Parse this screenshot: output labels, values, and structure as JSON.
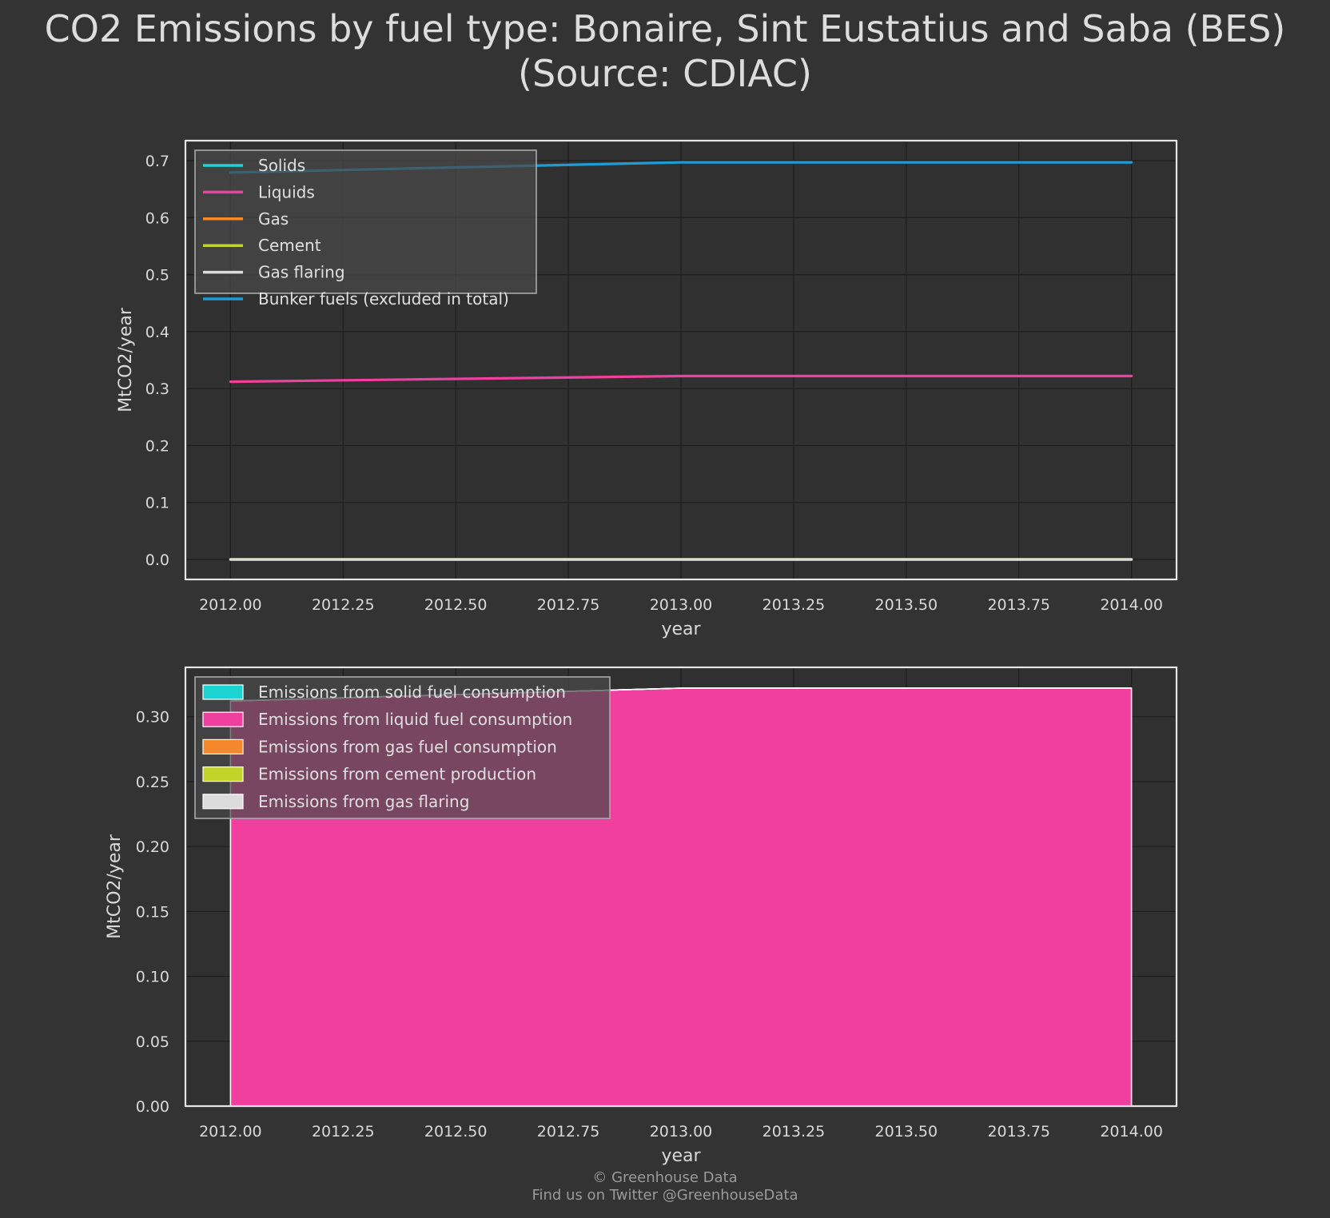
{
  "title": {
    "line1": "CO2 Emissions by fuel type: Bonaire, Sint Eustatius and Saba (BES)",
    "line2": "(Source: CDIAC)"
  },
  "footer": {
    "line1": "© Greenhouse Data",
    "line2": "Find us on Twitter @GreenhouseData"
  },
  "colors": {
    "background": "#333333",
    "solids": "#1bd3d3",
    "liquids": "#f03f9e",
    "gas": "#f5882a",
    "cement": "#c2d42a",
    "gas_flaring": "#dcdcdc",
    "bunker": "#1e9bd7"
  },
  "chart_data": [
    {
      "type": "line",
      "x": [
        2012,
        2013,
        2014
      ],
      "xlabel": "year",
      "ylabel": "MtCO2/year",
      "xlim": [
        2011.9,
        2014.1
      ],
      "ylim": [
        -0.035,
        0.735
      ],
      "xticks": [
        2012.0,
        2012.25,
        2012.5,
        2012.75,
        2013.0,
        2013.25,
        2013.5,
        2013.75,
        2014.0
      ],
      "xtick_labels": [
        "2012.00",
        "2012.25",
        "2012.50",
        "2012.75",
        "2013.00",
        "2013.25",
        "2013.50",
        "2013.75",
        "2014.00"
      ],
      "yticks": [
        0.0,
        0.1,
        0.2,
        0.3,
        0.4,
        0.5,
        0.6,
        0.7
      ],
      "ytick_labels": [
        "0.0",
        "0.1",
        "0.2",
        "0.3",
        "0.4",
        "0.5",
        "0.6",
        "0.7"
      ],
      "grid": true,
      "legend_position": "top-left",
      "series": [
        {
          "name": "Solids",
          "color": "#1bd3d3",
          "values": [
            0.0,
            0.0,
            0.0
          ]
        },
        {
          "name": "Liquids",
          "color": "#f03f9e",
          "values": [
            0.312,
            0.322,
            0.322
          ]
        },
        {
          "name": "Gas",
          "color": "#f5882a",
          "values": [
            0.0,
            0.0,
            0.0
          ]
        },
        {
          "name": "Cement",
          "color": "#c2d42a",
          "values": [
            0.0,
            0.0,
            0.0
          ]
        },
        {
          "name": "Gas flaring",
          "color": "#dcdcdc",
          "values": [
            0.0,
            0.0,
            0.0
          ]
        },
        {
          "name": "Bunker fuels (excluded in total)",
          "color": "#1e9bd7",
          "values": [
            0.679,
            0.697,
            0.697
          ]
        }
      ]
    },
    {
      "type": "area",
      "stacked": true,
      "x": [
        2012,
        2013,
        2014
      ],
      "xlabel": "year",
      "ylabel": "MtCO2/year",
      "xlim": [
        2011.9,
        2014.1
      ],
      "ylim": [
        0.0,
        0.338
      ],
      "xticks": [
        2012.0,
        2012.25,
        2012.5,
        2012.75,
        2013.0,
        2013.25,
        2013.5,
        2013.75,
        2014.0
      ],
      "xtick_labels": [
        "2012.00",
        "2012.25",
        "2012.50",
        "2012.75",
        "2013.00",
        "2013.25",
        "2013.50",
        "2013.75",
        "2014.00"
      ],
      "yticks": [
        0.0,
        0.05,
        0.1,
        0.15,
        0.2,
        0.25,
        0.3
      ],
      "ytick_labels": [
        "0.00",
        "0.05",
        "0.10",
        "0.15",
        "0.20",
        "0.25",
        "0.30"
      ],
      "grid": true,
      "legend_position": "top-left",
      "series": [
        {
          "name": "Emissions from solid fuel consumption",
          "color": "#1bd3d3",
          "values": [
            0.0,
            0.0,
            0.0
          ]
        },
        {
          "name": "Emissions from liquid fuel consumption",
          "color": "#f03f9e",
          "values": [
            0.312,
            0.322,
            0.322
          ]
        },
        {
          "name": "Emissions from gas fuel consumption",
          "color": "#f5882a",
          "values": [
            0.0,
            0.0,
            0.0
          ]
        },
        {
          "name": "Emissions from cement production",
          "color": "#c2d42a",
          "values": [
            0.0,
            0.0,
            0.0
          ]
        },
        {
          "name": "Emissions from gas flaring",
          "color": "#dcdcdc",
          "values": [
            0.0,
            0.0,
            0.0
          ]
        }
      ]
    }
  ]
}
